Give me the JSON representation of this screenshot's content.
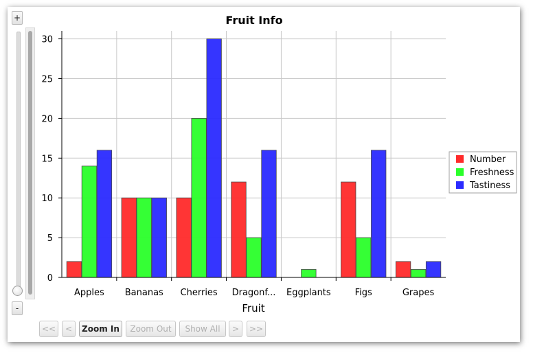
{
  "zoom_slider": {
    "plus_label": "+",
    "minus_label": "-"
  },
  "chart_data": {
    "type": "bar",
    "title": "Fruit Info",
    "xlabel": "Fruit",
    "ylabel": "",
    "categories": [
      "Apples",
      "Bananas",
      "Cherries",
      "Dragonf...",
      "Eggplants",
      "Figs",
      "Grapes"
    ],
    "series": [
      {
        "name": "Number",
        "color": "#ff2a2a",
        "values": [
          2,
          10,
          10,
          12,
          0,
          12,
          2
        ]
      },
      {
        "name": "Freshness",
        "color": "#2aff2a",
        "values": [
          14,
          10,
          20,
          5,
          1,
          5,
          1
        ]
      },
      {
        "name": "Tastiness",
        "color": "#2a2aff",
        "values": [
          16,
          10,
          30,
          16,
          0,
          16,
          2
        ]
      }
    ],
    "ylim": [
      0,
      31
    ],
    "yticks": [
      0,
      5,
      10,
      15,
      20,
      25,
      30
    ],
    "grid": true,
    "legend_position": "right"
  },
  "nav": {
    "first_label": "<<",
    "prev_label": "<",
    "zoom_in_label": "Zoom In",
    "zoom_out_label": "Zoom Out",
    "show_all_label": "Show All",
    "next_label": ">",
    "last_label": ">>"
  }
}
